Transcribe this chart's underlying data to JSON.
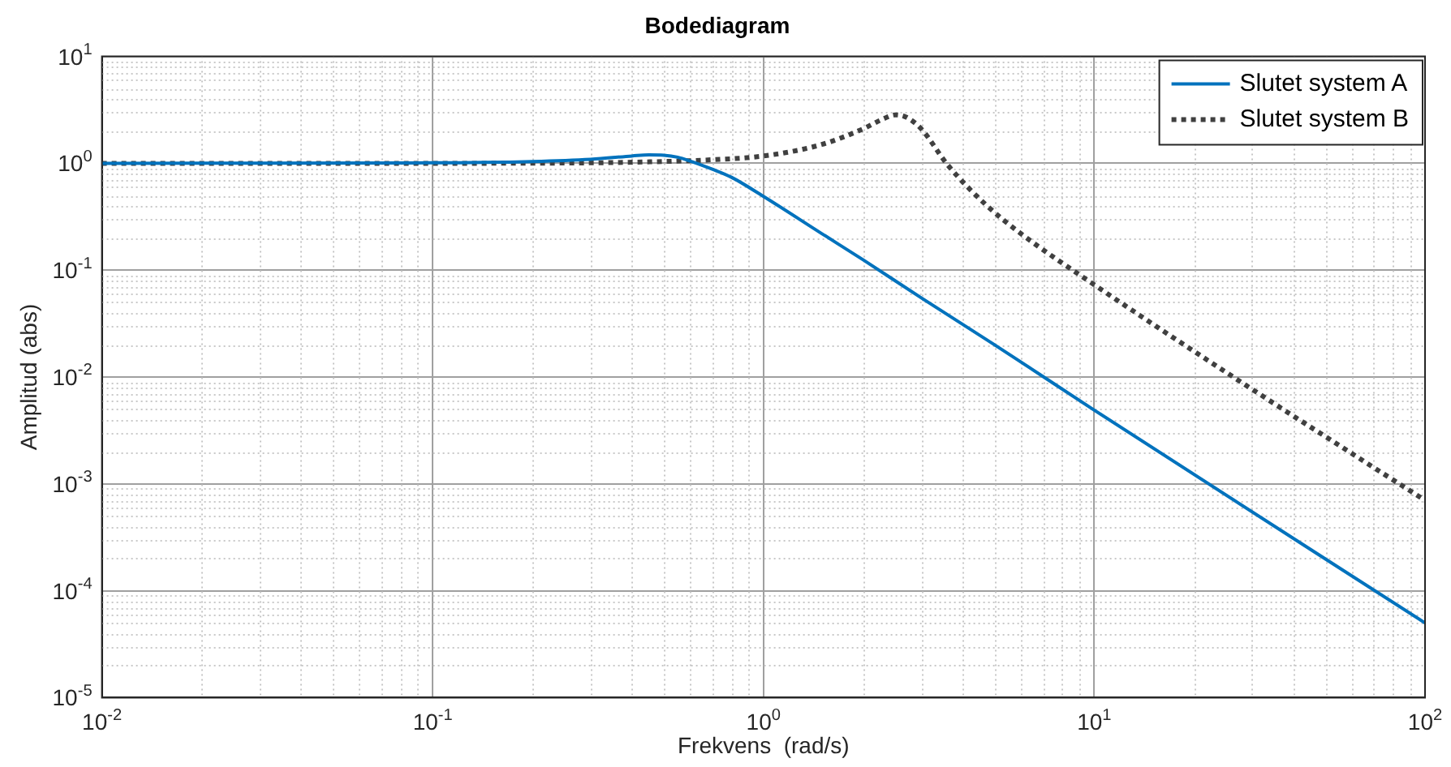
{
  "chart_data": {
    "type": "line",
    "title": "Bodediagram",
    "xlabel": "Frekvens  (rad/s)",
    "ylabel": "Amplitud (abs)",
    "log": "xy",
    "grid": true,
    "legend": "top right",
    "xlim": [
      0.01,
      100
    ],
    "ylim": [
      1e-05,
      10
    ],
    "xticks": [
      {
        "value": 0.01,
        "label": "10$^{-2}$"
      },
      {
        "value": 0.1,
        "label": "10$^{-1}$"
      },
      {
        "value": 1,
        "label": "10$^{0}$"
      },
      {
        "value": 10,
        "label": "10$^{1}$"
      },
      {
        "value": 100,
        "label": "10$^{2}$"
      }
    ],
    "yticks": [
      {
        "value": 1e-05,
        "label": "10$^{-5}$"
      },
      {
        "value": 0.0001,
        "label": "10$^{-4}$"
      },
      {
        "value": 0.001,
        "label": "10$^{-3}$"
      },
      {
        "value": 0.01,
        "label": "10$^{-2}$"
      },
      {
        "value": 0.1,
        "label": "10$^{-1}$"
      },
      {
        "value": 1,
        "label": "10$^{0}$"
      },
      {
        "value": 10,
        "label": "10$^{1}$"
      }
    ],
    "series": [
      {
        "name": "Slutet system A",
        "color": "#0072bd",
        "line_style": "solid",
        "x": [
          0.01,
          0.1,
          0.2,
          0.3,
          0.4,
          0.45,
          0.5,
          0.55,
          0.6,
          0.7,
          0.8,
          1,
          1.5,
          2,
          3,
          5,
          10,
          100
        ],
        "values": [
          1,
          1.01,
          1.04,
          1.09,
          1.17,
          1.2,
          1.19,
          1.14,
          1.05,
          0.88,
          0.74,
          0.49,
          0.22,
          0.125,
          0.055,
          0.02,
          0.0049,
          5e-05
        ]
      },
      {
        "name": "Slutet system B",
        "color": "#404040",
        "line_style": "dotted",
        "x": [
          0.01,
          0.1,
          0.3,
          0.5,
          0.7,
          1,
          1.5,
          2,
          2.3,
          2.5,
          2.7,
          3,
          3.6,
          4.7,
          6,
          10,
          27,
          100
        ],
        "values": [
          1,
          1,
          1.01,
          1.04,
          1.08,
          1.17,
          1.5,
          2.1,
          2.6,
          2.84,
          2.7,
          2.1,
          0.97,
          0.41,
          0.22,
          0.073,
          0.0095,
          0.0007
        ]
      }
    ]
  }
}
